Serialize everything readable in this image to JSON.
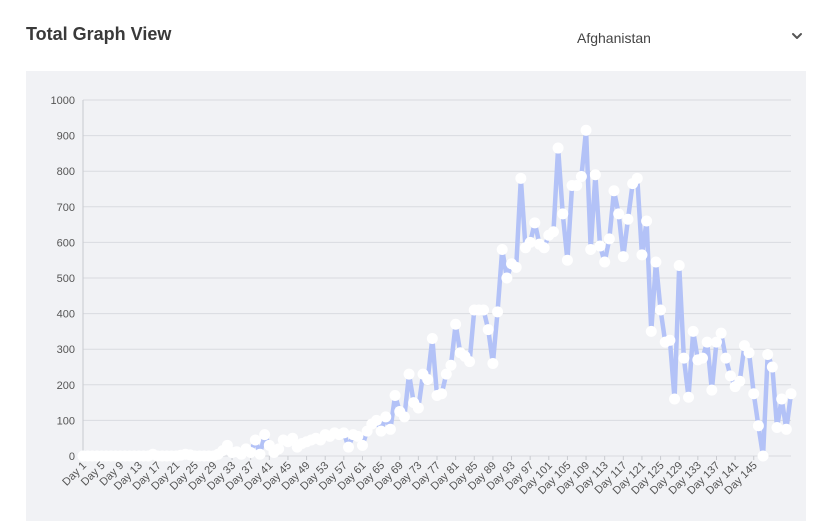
{
  "header": {
    "title": "Total Graph View",
    "country_selected": "Afghanistan"
  },
  "icons": {
    "dropdown": "chevron-down-icon"
  },
  "colors": {
    "line": "#b3c2f7",
    "point_fill": "#ffffff",
    "panel_bg": "#f1f2f5",
    "grid": "#d9dbe0"
  },
  "chart_data": {
    "type": "line",
    "title": "",
    "xlabel": "",
    "ylabel": "",
    "ylim": [
      0,
      1000
    ],
    "yticks": [
      0,
      100,
      200,
      300,
      400,
      500,
      600,
      700,
      800,
      900,
      1000
    ],
    "grid": true,
    "x_tick_labels": [
      "Day 1",
      "Day 5",
      "Day 9",
      "Day 13",
      "Day 17",
      "Day 21",
      "Day 25",
      "Day 29",
      "Day 33",
      "Day 37",
      "Day 41",
      "Day 45",
      "Day 49",
      "Day 53",
      "Day 57",
      "Day 61",
      "Day 65",
      "Day 69",
      "Day 73",
      "Day 77",
      "Day 81",
      "Day 85",
      "Day 89",
      "Day 93",
      "Day 97",
      "Day 101",
      "Day 105",
      "Day 109",
      "Day 113",
      "Day 117",
      "Day 121",
      "Day 125",
      "Day 129",
      "Day 133",
      "Day 137",
      "Day 141",
      "Day 145"
    ],
    "series": [
      {
        "values": [
          0,
          0,
          0,
          0,
          0,
          0,
          0,
          0,
          0,
          0,
          0,
          0,
          0,
          0,
          0,
          5,
          0,
          0,
          0,
          0,
          0,
          2,
          5,
          3,
          0,
          0,
          0,
          0,
          0,
          5,
          15,
          30,
          10,
          12,
          5,
          20,
          10,
          45,
          5,
          60,
          30,
          10,
          20,
          45,
          40,
          50,
          25,
          35,
          40,
          45,
          50,
          45,
          60,
          55,
          65,
          60,
          65,
          25,
          60,
          55,
          30,
          70,
          90,
          100,
          70,
          110,
          75,
          170,
          125,
          110,
          230,
          150,
          135,
          230,
          215,
          330,
          170,
          175,
          230,
          255,
          370,
          290,
          280,
          265,
          410,
          410,
          410,
          355,
          260,
          405,
          580,
          500,
          540,
          530,
          780,
          585,
          600,
          655,
          595,
          585,
          620,
          630,
          865,
          680,
          550,
          760,
          760,
          785,
          915,
          580,
          790,
          590,
          545,
          610,
          745,
          680,
          560,
          665,
          765,
          780,
          565,
          660,
          350,
          545,
          410,
          320,
          325,
          160,
          535,
          275,
          165,
          350,
          270,
          275,
          320,
          185,
          320,
          345,
          275,
          225,
          195,
          210,
          310,
          290,
          175,
          85,
          0,
          285,
          250,
          80,
          160,
          75,
          175
        ]
      }
    ]
  }
}
